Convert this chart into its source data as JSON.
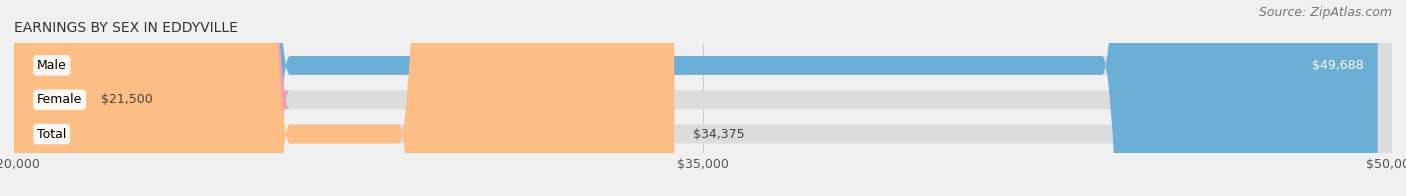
{
  "title": "EARNINGS BY SEX IN EDDYVILLE",
  "source": "Source: ZipAtlas.com",
  "categories": [
    "Male",
    "Female",
    "Total"
  ],
  "values": [
    49688,
    21500,
    34375
  ],
  "bar_colors": [
    "#6baed6",
    "#f4a0b5",
    "#fdbe85"
  ],
  "value_labels": [
    "$49,688",
    "$21,500",
    "$34,375"
  ],
  "xlim_min": 20000,
  "xlim_max": 50000,
  "xticks": [
    20000,
    35000,
    50000
  ],
  "xtick_labels": [
    "$20,000",
    "$35,000",
    "$50,000"
  ],
  "background_color": "#f0f0f0",
  "title_fontsize": 10,
  "source_fontsize": 9,
  "label_fontsize": 9,
  "value_fontsize": 9,
  "tick_fontsize": 9
}
